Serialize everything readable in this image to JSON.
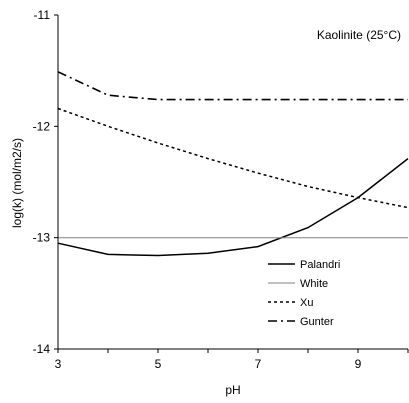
{
  "chart_data": {
    "type": "line",
    "annotation": "Kaolinite (25°C)",
    "xlabel": "pH",
    "ylabel": "log(k) (mol/m2/s)",
    "xlim": [
      3,
      10
    ],
    "ylim": [
      -14,
      -11
    ],
    "xticks": [
      3,
      5,
      7,
      9
    ],
    "xtick_labels": [
      "3",
      "5",
      "7",
      "9"
    ],
    "yticks": [
      -11,
      -12,
      -13,
      -14
    ],
    "ytick_labels": [
      "-11",
      "-12",
      "-13",
      "-14"
    ],
    "grid": false,
    "legend": {
      "placement": "bottom-right"
    },
    "series": [
      {
        "name": "Palandri",
        "style": "solid",
        "color": "#000000",
        "x": [
          3,
          4,
          5,
          6,
          7,
          8,
          9,
          10
        ],
        "y": [
          -13.05,
          -13.15,
          -13.16,
          -13.14,
          -13.08,
          -12.91,
          -12.64,
          -12.29
        ]
      },
      {
        "name": "White",
        "style": "solid-thin",
        "color": "#808080",
        "x": [
          3,
          10
        ],
        "y": [
          -13.0,
          -13.0
        ]
      },
      {
        "name": "Xu",
        "style": "dotted",
        "color": "#000000",
        "x": [
          3,
          4,
          5,
          6,
          7,
          8,
          9,
          10
        ],
        "y": [
          -11.84,
          -12.0,
          -12.15,
          -12.29,
          -12.42,
          -12.54,
          -12.64,
          -12.73
        ]
      },
      {
        "name": "Gunter",
        "style": "dash-dot",
        "color": "#000000",
        "x": [
          3,
          4,
          5,
          6,
          7,
          8,
          9,
          10
        ],
        "y": [
          -11.51,
          -11.72,
          -11.76,
          -11.76,
          -11.76,
          -11.76,
          -11.76,
          -11.76
        ]
      }
    ]
  }
}
